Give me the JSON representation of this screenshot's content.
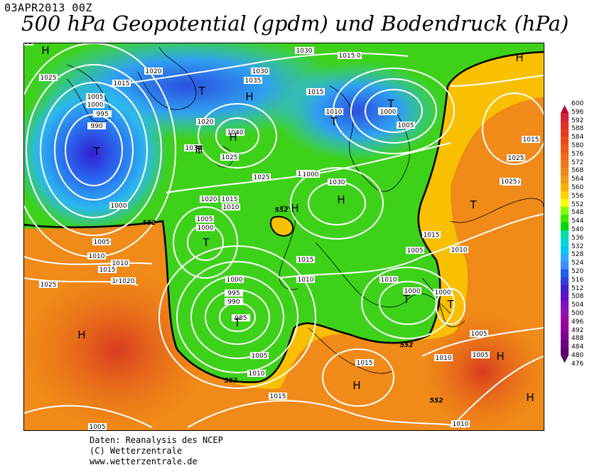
{
  "header": {
    "datetime": "03APR2013 00Z",
    "title": "500 hPa Geopotential (gpdm) und Bodendruck (hPa)"
  },
  "credits": {
    "line1": "Daten: Reanalysis des NCEP",
    "line2": "(C) Wetterzentrale",
    "line3": "www.wetterzentrale.de"
  },
  "legend": {
    "values": [
      "600",
      "596",
      "592",
      "588",
      "584",
      "580",
      "576",
      "572",
      "568",
      "564",
      "560",
      "556",
      "552",
      "548",
      "544",
      "540",
      "536",
      "532",
      "528",
      "524",
      "520",
      "516",
      "512",
      "508",
      "504",
      "500",
      "496",
      "492",
      "488",
      "484",
      "480",
      "476"
    ],
    "colors": [
      "#c8002a",
      "#d8203a",
      "#e03028",
      "#e83a20",
      "#ee4818",
      "#f05818",
      "#f06818",
      "#f07818",
      "#f08818",
      "#f09a18",
      "#f8b000",
      "#ffd200",
      "#ffff00",
      "#80ff00",
      "#40e800",
      "#00d800",
      "#00e0a0",
      "#00d8d8",
      "#00c8f0",
      "#30a8ff",
      "#3c8cff",
      "#2060f0",
      "#3040e0",
      "#4020c8",
      "#6010c8",
      "#8010c0",
      "#9010b0",
      "#a000a0",
      "#9000a0",
      "#800090",
      "#700080",
      "#600070"
    ]
  },
  "map": {
    "isohypse_labels": [
      "552",
      "552",
      "552",
      "552",
      "552"
    ],
    "pressure_labels": [
      "1030",
      "1020",
      "1015",
      "1030",
      "1035",
      "1025",
      "1015",
      "1010",
      "1005",
      "1000",
      "995",
      "990",
      "1020",
      "1010",
      "1000",
      "1005",
      "1040",
      "1030",
      "1025",
      "1020",
      "1015",
      "1010",
      "1000",
      "1005",
      "1010",
      "1015",
      "1020",
      "1025",
      "1005",
      "1000",
      "995",
      "990",
      "985",
      "1000",
      "1005",
      "1010",
      "1015",
      "1020",
      "1025",
      "1030",
      "1015",
      "1010",
      "1005",
      "1000",
      "1000",
      "1005",
      "1010",
      "1015",
      "1010",
      "1005",
      "1010",
      "1025",
      "1025",
      "1020",
      "1015",
      "1010",
      "1005",
      "1000",
      "1020",
      "1015",
      "1025",
      "1030",
      "1015",
      "1010",
      "1005"
    ],
    "highs": [
      "H",
      "H",
      "H",
      "H",
      "H",
      "H",
      "H",
      "H",
      "H",
      "H",
      "H"
    ],
    "lows": [
      "T",
      "T",
      "T",
      "T",
      "T",
      "T",
      "T",
      "T",
      "T",
      "T"
    ]
  }
}
